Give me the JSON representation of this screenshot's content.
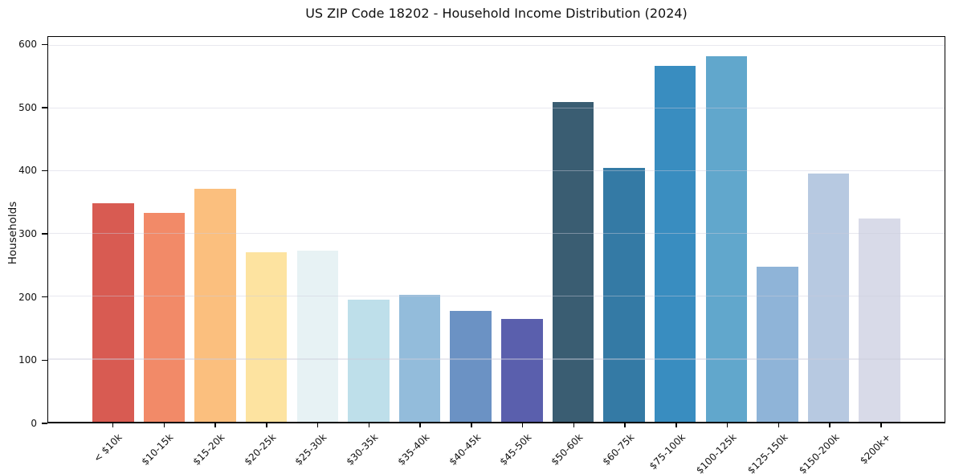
{
  "chart_data": {
    "type": "bar",
    "title": "US ZIP Code 18202 - Household Income Distribution (2024)",
    "xlabel": "",
    "ylabel": "Households",
    "categories": [
      "< $10k",
      "$10-15k",
      "$15-20k",
      "$20-25k",
      "$25-30k",
      "$30-35k",
      "$35-40k",
      "$40-45k",
      "$45-50k",
      "$50-60k",
      "$60-75k",
      "$75-100k",
      "$100-125k",
      "$125-150k",
      "$150-200k",
      "$200k+"
    ],
    "values": [
      348,
      333,
      371,
      270,
      272,
      195,
      202,
      176,
      164,
      510,
      404,
      567,
      582,
      247,
      395,
      324
    ],
    "bar_colors": [
      "#d85b52",
      "#f28a68",
      "#fbbf7e",
      "#fde3a0",
      "#e7f2f4",
      "#bedfea",
      "#93bcdb",
      "#6b92c4",
      "#5a5fad",
      "#3a5d72",
      "#347aa5",
      "#398dc0",
      "#61a7cc",
      "#8fb4d8",
      "#b7c9e1",
      "#d8dae8"
    ],
    "yticks": [
      0,
      100,
      200,
      300,
      400,
      500,
      600
    ],
    "ylim": [
      0,
      613
    ],
    "grid": "horizontal",
    "legend": "none",
    "background_color": "#ffffff",
    "spine_color": "#000000"
  }
}
